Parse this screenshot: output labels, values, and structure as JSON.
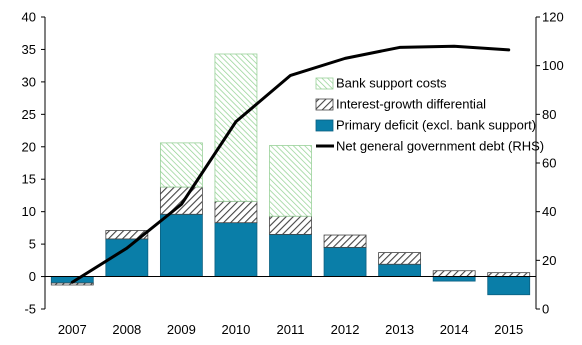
{
  "chart_data": {
    "type": "bar",
    "stacked": true,
    "title": "",
    "xlabel": "",
    "ylabel": "",
    "y2label": "",
    "categories": [
      "2007",
      "2008",
      "2009",
      "2010",
      "2011",
      "2012",
      "2013",
      "2014",
      "2015"
    ],
    "ylim": [
      -5,
      40
    ],
    "yticks": [
      -5,
      0,
      5,
      10,
      15,
      20,
      25,
      30,
      35,
      40
    ],
    "y2lim": [
      0,
      120
    ],
    "y2ticks": [
      0,
      20,
      40,
      60,
      80,
      100,
      120
    ],
    "grid": false,
    "legend_position": "center-right",
    "series": [
      {
        "name": "Primary deficit (excl. bank support)",
        "kind": "bar",
        "axis": "left",
        "color": "#0a7ea8",
        "fill": "solid",
        "values": [
          -1.0,
          5.8,
          9.6,
          8.3,
          6.5,
          4.5,
          1.9,
          -0.7,
          -2.8
        ]
      },
      {
        "name": "Interest-growth differential",
        "kind": "bar",
        "axis": "left",
        "color": "#555555",
        "fill": "diagonal-hatch",
        "values": [
          -0.3,
          1.3,
          4.2,
          3.3,
          2.8,
          1.9,
          1.8,
          0.9,
          0.6
        ]
      },
      {
        "name": "Bank support costs",
        "kind": "bar",
        "axis": "left",
        "color": "#7cc47c",
        "fill": "light-diagonal-hatch",
        "values": [
          0.0,
          0.0,
          6.8,
          22.7,
          10.9,
          0.0,
          0.0,
          0.0,
          0.0
        ]
      },
      {
        "name": "Net general government debt (RHS)",
        "kind": "line",
        "axis": "right",
        "color": "#000000",
        "values": [
          11,
          25,
          43,
          77,
          96,
          103,
          107.5,
          108,
          106.5
        ]
      }
    ]
  }
}
